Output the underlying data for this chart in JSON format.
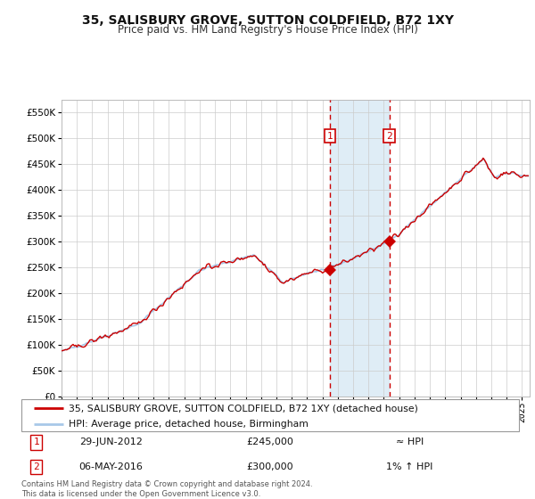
{
  "title": "35, SALISBURY GROVE, SUTTON COLDFIELD, B72 1XY",
  "subtitle": "Price paid vs. HM Land Registry's House Price Index (HPI)",
  "legend_line1": "35, SALISBURY GROVE, SUTTON COLDFIELD, B72 1XY (detached house)",
  "legend_line2": "HPI: Average price, detached house, Birmingham",
  "annotation1_label": "1",
  "annotation1_date": "29-JUN-2012",
  "annotation1_price": "£245,000",
  "annotation1_hpi": "≈ HPI",
  "annotation2_label": "2",
  "annotation2_date": "06-MAY-2016",
  "annotation2_price": "£300,000",
  "annotation2_hpi": "1% ↑ HPI",
  "footer": "Contains HM Land Registry data © Crown copyright and database right 2024.\nThis data is licensed under the Open Government Licence v3.0.",
  "hpi_color": "#a8c8e8",
  "sale_color": "#cc0000",
  "marker1_x": 2012.5,
  "marker1_y": 245000,
  "marker2_x": 2016.35,
  "marker2_y": 300000,
  "vline1_x": 2012.5,
  "vline2_x": 2016.35,
  "shade_x1": 2012.5,
  "shade_x2": 2016.35,
  "ylim": [
    0,
    575000
  ],
  "xlim": [
    1995,
    2025.5
  ],
  "background_color": "#ffffff",
  "grid_color": "#cccccc"
}
